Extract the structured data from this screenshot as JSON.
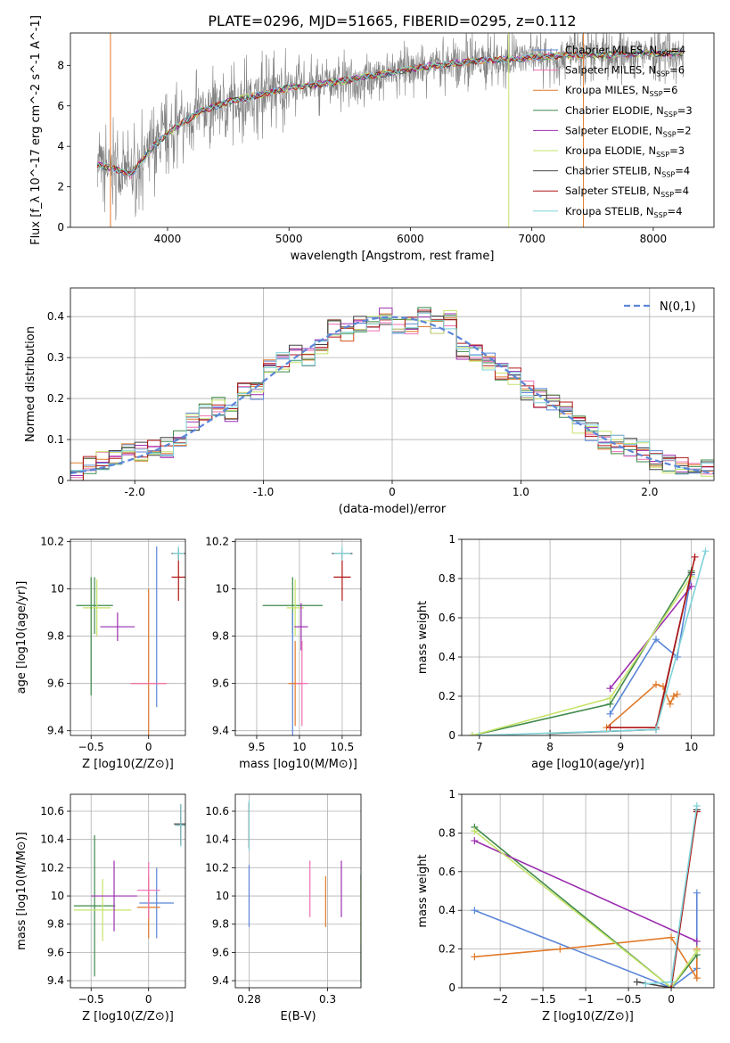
{
  "page": {
    "title": "PLATE=0296, MJD=51665, FIBERID=0295, z=0.112"
  },
  "colors": {
    "Chabrier MILES": "#5b86d8",
    "Salpeter MILES": "#f06fb2",
    "Kroupa MILES": "#e07a2a",
    "Chabrier ELODIE": "#3f8a4a",
    "Salpeter ELODIE": "#9b2fb0",
    "Kroupa ELODIE": "#c6e36a",
    "Chabrier STELIB": "#444444",
    "Salpeter STELIB": "#b01717",
    "Kroupa STELIB": "#7fd3d8",
    "data": "#808080"
  },
  "chart_data": [
    {
      "id": "spectrum",
      "type": "line",
      "xlabel": "wavelength [Angstrom, rest frame]",
      "ylabel": "Flux [f_λ 10^-17 erg cm^-2 s^-1 A^-1]",
      "xlim": [
        3200,
        8500
      ],
      "ylim": [
        0,
        9.6
      ],
      "xticks": [
        4000,
        5000,
        6000,
        7000,
        8000
      ],
      "yticks": [
        0,
        2,
        4,
        6,
        8
      ],
      "legend": [
        {
          "name": "Chabrier MILES",
          "nssp": "4"
        },
        {
          "name": "Salpeter MILES",
          "nssp": "6"
        },
        {
          "name": "Kroupa MILES",
          "nssp": "6"
        },
        {
          "name": "Chabrier ELODIE",
          "nssp": "3"
        },
        {
          "name": "Salpeter ELODIE",
          "nssp": "2"
        },
        {
          "name": "Kroupa ELODIE",
          "nssp": "3"
        },
        {
          "name": "Chabrier STELIB",
          "nssp": "4"
        },
        {
          "name": "Salpeter STELIB",
          "nssp": "4"
        },
        {
          "name": "Kroupa STELIB",
          "nssp": "4"
        }
      ],
      "legend_position": "upper-right",
      "model_continuum": {
        "x": [
          3420,
          3550,
          3700,
          3800,
          3900,
          4000,
          4100,
          4300,
          4500,
          4800,
          5000,
          5300,
          5600,
          5900,
          6200,
          6500,
          6800,
          7000,
          7300,
          7600,
          7900,
          8200
        ],
        "y": [
          3.1,
          2.9,
          2.6,
          3.4,
          4.1,
          4.6,
          5.1,
          5.8,
          6.2,
          6.6,
          6.9,
          7.1,
          7.4,
          7.7,
          8.0,
          8.2,
          8.3,
          8.4,
          8.5,
          8.5,
          8.6,
          8.6
        ]
      },
      "grid": false
    },
    {
      "id": "residuals",
      "type": "line",
      "xlabel": "(data-model)/error",
      "ylabel": "Normed distribution",
      "xlim": [
        -2.5,
        2.5
      ],
      "ylim": [
        0,
        0.47
      ],
      "xticks": [
        -2,
        -1,
        0,
        1,
        2
      ],
      "yticks": [
        0.0,
        0.1,
        0.2,
        0.3,
        0.4
      ],
      "normal_curve": {
        "name": "N(0,1)",
        "mean": 0,
        "sigma": 1
      },
      "histogram_bins": [
        -2.5,
        -2.4,
        -2.3,
        -2.2,
        -2.1,
        -2.0,
        -1.9,
        -1.8,
        -1.7,
        -1.6,
        -1.5,
        -1.4,
        -1.3,
        -1.2,
        -1.1,
        -1.0,
        -0.9,
        -0.8,
        -0.7,
        -0.6,
        -0.5,
        -0.4,
        -0.3,
        -0.2,
        -0.1,
        0.0,
        0.1,
        0.2,
        0.3,
        0.4,
        0.5,
        0.6,
        0.7,
        0.8,
        0.9,
        1.0,
        1.1,
        1.2,
        1.3,
        1.4,
        1.5,
        1.6,
        1.7,
        1.8,
        1.9,
        2.0,
        2.1,
        2.2,
        2.3,
        2.4,
        2.5
      ],
      "histogram_base": [
        0.02,
        0.04,
        0.05,
        0.06,
        0.07,
        0.07,
        0.08,
        0.08,
        0.1,
        0.14,
        0.17,
        0.18,
        0.16,
        0.23,
        0.22,
        0.27,
        0.29,
        0.31,
        0.3,
        0.33,
        0.37,
        0.36,
        0.38,
        0.39,
        0.4,
        0.37,
        0.38,
        0.4,
        0.38,
        0.39,
        0.32,
        0.31,
        0.29,
        0.27,
        0.25,
        0.22,
        0.2,
        0.19,
        0.17,
        0.14,
        0.12,
        0.1,
        0.09,
        0.08,
        0.07,
        0.05,
        0.04,
        0.04,
        0.03,
        0.03
      ],
      "grid": true
    },
    {
      "id": "age-vs-z",
      "type": "scatter",
      "xlabel": "Z [log10(Z/Z⊙)]",
      "ylabel": "age [log10(age/yr)]",
      "xlim": [
        -0.68,
        0.32
      ],
      "ylim": [
        9.38,
        10.21
      ],
      "xticks": [
        -0.5,
        0.0
      ],
      "yticks": [
        9.4,
        9.6,
        9.8,
        10.0,
        10.2
      ],
      "points": [
        {
          "series": "Chabrier MILES",
          "x": 0.07,
          "y": 9.84,
          "xerr": 0.0,
          "yerr": 0.34
        },
        {
          "series": "Kroupa MILES",
          "x": 0.0,
          "y": 9.6,
          "xerr": 0.15,
          "yerr": 0.4
        },
        {
          "series": "Salpeter MILES",
          "x": 0.0,
          "y": 9.6,
          "xerr": 0.16,
          "yerr": 0.0
        },
        {
          "series": "Chabrier ELODIE",
          "x": -0.47,
          "y": 9.93,
          "xerr": 0.16,
          "yerr": 0.12
        },
        {
          "series": "Kroupa ELODIE",
          "x": -0.45,
          "y": 9.92,
          "xerr": 0.12,
          "yerr": 0.12
        },
        {
          "series": "Salpeter ELODIE",
          "x": -0.27,
          "y": 9.84,
          "xerr": 0.15,
          "yerr": 0.06
        },
        {
          "series": "Chabrier STELIB",
          "x": 0.26,
          "y": 10.15,
          "xerr": 0.06,
          "yerr": 0.02
        },
        {
          "series": "Salpeter STELIB",
          "x": 0.26,
          "y": 10.05,
          "xerr": 0.06,
          "yerr": 0.1
        },
        {
          "series": "Kroupa STELIB",
          "x": 0.26,
          "y": 10.15,
          "xerr": 0.05,
          "yerr": 0.03
        },
        {
          "series": "Chabrier ELODIE",
          "x": -0.5,
          "y": 9.8,
          "xerr": 0.0,
          "yerr": 0.25
        }
      ],
      "grid": true
    },
    {
      "id": "age-vs-mass",
      "type": "scatter",
      "xlabel": "mass [log10(M/M⊙)]",
      "ylabel": "",
      "xlim": [
        9.25,
        10.72
      ],
      "ylim": [
        9.38,
        10.21
      ],
      "xticks": [
        9.5,
        10.0,
        10.5
      ],
      "yticks": [
        9.4,
        9.6,
        9.8,
        10.0,
        10.2
      ],
      "points": [
        {
          "series": "Chabrier ELODIE",
          "x": 9.92,
          "y": 9.93,
          "xerr": 0.35,
          "yerr": 0.12
        },
        {
          "series": "Kroupa ELODIE",
          "x": 9.95,
          "y": 9.92,
          "xerr": 0.1,
          "yerr": 0.12
        },
        {
          "series": "Salpeter ELODIE",
          "x": 10.02,
          "y": 9.84,
          "xerr": 0.08,
          "yerr": 0.1
        },
        {
          "series": "Chabrier MILES",
          "x": 9.92,
          "y": 9.6,
          "xerr": 0.0,
          "yerr": 0.3
        },
        {
          "series": "Kroupa MILES",
          "x": 9.95,
          "y": 9.6,
          "xerr": 0.08,
          "yerr": 0.18
        },
        {
          "series": "Salpeter MILES",
          "x": 10.03,
          "y": 9.6,
          "xerr": 0.07,
          "yerr": 0.18
        },
        {
          "series": "Chabrier STELIB",
          "x": 10.5,
          "y": 10.15,
          "xerr": 0.12,
          "yerr": 0.02
        },
        {
          "series": "Salpeter STELIB",
          "x": 10.5,
          "y": 10.05,
          "xerr": 0.1,
          "yerr": 0.1
        },
        {
          "series": "Kroupa STELIB",
          "x": 10.5,
          "y": 10.15,
          "xerr": 0.1,
          "yerr": 0.03
        }
      ],
      "grid": true
    },
    {
      "id": "massweight-vs-age",
      "type": "line",
      "xlabel": "age [log10(age/yr)]",
      "ylabel": "mass weight",
      "xlim": [
        6.75,
        10.32
      ],
      "ylim": [
        0,
        1.0
      ],
      "xticks": [
        7,
        8,
        9,
        10
      ],
      "yticks": [
        0.0,
        0.2,
        0.4,
        0.6,
        0.8,
        1.0
      ],
      "series": [
        {
          "name": "Chabrier MILES",
          "x": [
            8.85,
            9.5,
            9.8,
            10.0
          ],
          "y": [
            0.11,
            0.49,
            0.4,
            0.82
          ]
        },
        {
          "name": "Kroupa MILES",
          "x": [
            8.8,
            9.5,
            9.6,
            9.7,
            9.75,
            9.8
          ],
          "y": [
            0.04,
            0.26,
            0.25,
            0.16,
            0.2,
            0.21
          ]
        },
        {
          "name": "Chabrier ELODIE",
          "x": [
            6.9,
            8.85,
            10.0
          ],
          "y": [
            0.0,
            0.16,
            0.84
          ]
        },
        {
          "name": "Salpeter ELODIE",
          "x": [
            8.85,
            10.0
          ],
          "y": [
            0.24,
            0.76
          ]
        },
        {
          "name": "Kroupa ELODIE",
          "x": [
            6.9,
            8.85,
            10.0
          ],
          "y": [
            0.0,
            0.19,
            0.81
          ]
        },
        {
          "name": "Chabrier STELIB",
          "x": [
            8.0,
            9.5,
            10.0
          ],
          "y": [
            0.01,
            0.03,
            0.83
          ]
        },
        {
          "name": "Salpeter STELIB",
          "x": [
            8.85,
            9.5,
            10.05
          ],
          "y": [
            0.04,
            0.04,
            0.91
          ]
        },
        {
          "name": "Kroupa STELIB",
          "x": [
            7.0,
            9.5,
            10.2
          ],
          "y": [
            0.0,
            0.03,
            0.94
          ]
        }
      ],
      "grid": true
    },
    {
      "id": "mass-vs-z",
      "type": "scatter",
      "xlabel": "Z [log10(Z/Z⊙)]",
      "ylabel": "mass [log10(M/M⊙)]",
      "xlim": [
        -0.68,
        0.32
      ],
      "ylim": [
        9.35,
        10.72
      ],
      "xticks": [
        -0.5,
        0.0
      ],
      "yticks": [
        9.4,
        9.6,
        9.8,
        10.0,
        10.2,
        10.4,
        10.6
      ],
      "points": [
        {
          "series": "Chabrier ELODIE",
          "x": -0.47,
          "y": 9.93,
          "xerr": 0.18,
          "yerr": 0.5
        },
        {
          "series": "Kroupa ELODIE",
          "x": -0.4,
          "y": 9.9,
          "xerr": 0.25,
          "yerr": 0.22
        },
        {
          "series": "Salpeter ELODIE",
          "x": -0.3,
          "y": 10.0,
          "xerr": 0.2,
          "yerr": 0.25
        },
        {
          "series": "Chabrier MILES",
          "x": 0.07,
          "y": 9.95,
          "xerr": 0.15,
          "yerr": 0.25
        },
        {
          "series": "Kroupa MILES",
          "x": 0.0,
          "y": 9.92,
          "xerr": 0.1,
          "yerr": 0.22
        },
        {
          "series": "Salpeter MILES",
          "x": 0.0,
          "y": 10.04,
          "xerr": 0.1,
          "yerr": 0.2
        },
        {
          "series": "Chabrier STELIB",
          "x": 0.28,
          "y": 10.51,
          "xerr": 0.06,
          "yerr": 0.14
        },
        {
          "series": "Salpeter STELIB",
          "x": 0.28,
          "y": 10.5,
          "xerr": 0.05,
          "yerr": 0.14
        },
        {
          "series": "Kroupa STELIB",
          "x": 0.28,
          "y": 10.5,
          "xerr": 0.05,
          "yerr": 0.15
        }
      ],
      "grid": true
    },
    {
      "id": "mass-vs-ebv",
      "type": "scatter",
      "xlabel": "E(B-V)",
      "ylabel": "",
      "xlim": [
        0.2765,
        0.3085
      ],
      "ylim": [
        9.35,
        10.72
      ],
      "xticks": [
        0.28,
        0.3
      ],
      "yticks": [
        9.4,
        9.6,
        9.8,
        10.0,
        10.2,
        10.4,
        10.6
      ],
      "points": [
        {
          "series": "Chabrier MILES",
          "x": 0.28,
          "y": 10.0,
          "yerr": 0.22
        },
        {
          "series": "Chabrier STELIB",
          "x": 0.28,
          "y": 10.5,
          "yerr": 0.16
        },
        {
          "series": "Salpeter STELIB",
          "x": 0.28,
          "y": 10.5,
          "yerr": 0.16
        },
        {
          "series": "Kroupa STELIB",
          "x": 0.28,
          "y": 10.5,
          "yerr": 0.18
        },
        {
          "series": "Salpeter MILES",
          "x": 0.2955,
          "y": 10.05,
          "yerr": 0.2
        },
        {
          "series": "Kroupa MILES",
          "x": 0.2995,
          "y": 9.96,
          "yerr": 0.18
        },
        {
          "series": "Salpeter ELODIE",
          "x": 0.3035,
          "y": 10.05,
          "yerr": 0.2
        },
        {
          "series": "Chabrier ELODIE",
          "x": 0.3085,
          "y": 9.77,
          "yerr": 0.38
        },
        {
          "series": "Kroupa ELODIE",
          "x": 0.3085,
          "y": 9.88,
          "yerr": 0.23
        }
      ],
      "grid": true
    },
    {
      "id": "massweight-vs-z",
      "type": "line",
      "xlabel": "Z [log10(Z/Z⊙)]",
      "ylabel": "mass weight",
      "xlim": [
        -2.45,
        0.5
      ],
      "ylim": [
        0,
        1.0
      ],
      "xticks": [
        -2.0,
        -1.5,
        -1.0,
        -0.5,
        0.0
      ],
      "yticks": [
        0.0,
        0.2,
        0.4,
        0.6,
        0.8,
        1.0
      ],
      "series": [
        {
          "name": "Chabrier MILES",
          "x": [
            -2.3,
            0.0,
            0.3,
            0.3
          ],
          "y": [
            0.4,
            0.0,
            0.1,
            0.49
          ]
        },
        {
          "name": "Kroupa MILES",
          "x": [
            -2.3,
            -1.3,
            0.0,
            0.3,
            0.3
          ],
          "y": [
            0.16,
            0.2,
            0.26,
            0.05,
            0.2
          ]
        },
        {
          "name": "Chabrier ELODIE",
          "x": [
            -2.3,
            0.0,
            0.3
          ],
          "y": [
            0.83,
            0.0,
            0.17
          ]
        },
        {
          "name": "Salpeter ELODIE",
          "x": [
            -2.3,
            0.3
          ],
          "y": [
            0.76,
            0.24
          ]
        },
        {
          "name": "Kroupa ELODIE",
          "x": [
            -2.3,
            0.0,
            0.3
          ],
          "y": [
            0.81,
            0.0,
            0.19
          ]
        },
        {
          "name": "Chabrier STELIB",
          "x": [
            -0.4,
            0.0,
            0.3
          ],
          "y": [
            0.03,
            0.0,
            0.92
          ]
        },
        {
          "name": "Salpeter STELIB",
          "x": [
            0.0,
            0.3
          ],
          "y": [
            0.0,
            0.91
          ]
        },
        {
          "name": "Kroupa STELIB",
          "x": [
            -0.3,
            0.0,
            0.3
          ],
          "y": [
            0.02,
            0.03,
            0.94
          ]
        }
      ],
      "grid": true
    }
  ]
}
